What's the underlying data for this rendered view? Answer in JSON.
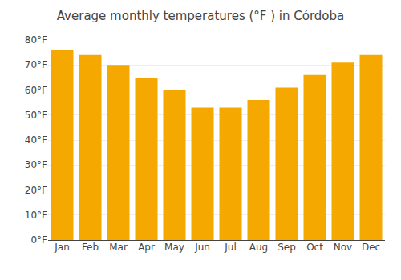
{
  "chart_data": {
    "type": "bar",
    "title": "Average monthly temperatures (°F ) in Córdoba",
    "categories": [
      "Jan",
      "Feb",
      "Mar",
      "Apr",
      "May",
      "Jun",
      "Jul",
      "Aug",
      "Sep",
      "Oct",
      "Nov",
      "Dec"
    ],
    "values": [
      76,
      74,
      70,
      65,
      60,
      53,
      53,
      56,
      61,
      66,
      71,
      74
    ],
    "color": "#F5A800",
    "ylim": [
      0,
      80
    ],
    "yticks": [
      {
        "value": 0,
        "label": "0°F"
      },
      {
        "value": 10,
        "label": "10°F"
      },
      {
        "value": 20,
        "label": "20°F"
      },
      {
        "value": 30,
        "label": "30°F"
      },
      {
        "value": 40,
        "label": "40°F"
      },
      {
        "value": 50,
        "label": "50°F"
      },
      {
        "value": 60,
        "label": "60°F"
      },
      {
        "value": 70,
        "label": "70°F"
      },
      {
        "value": 80,
        "label": "80°F"
      }
    ],
    "grid": true
  }
}
